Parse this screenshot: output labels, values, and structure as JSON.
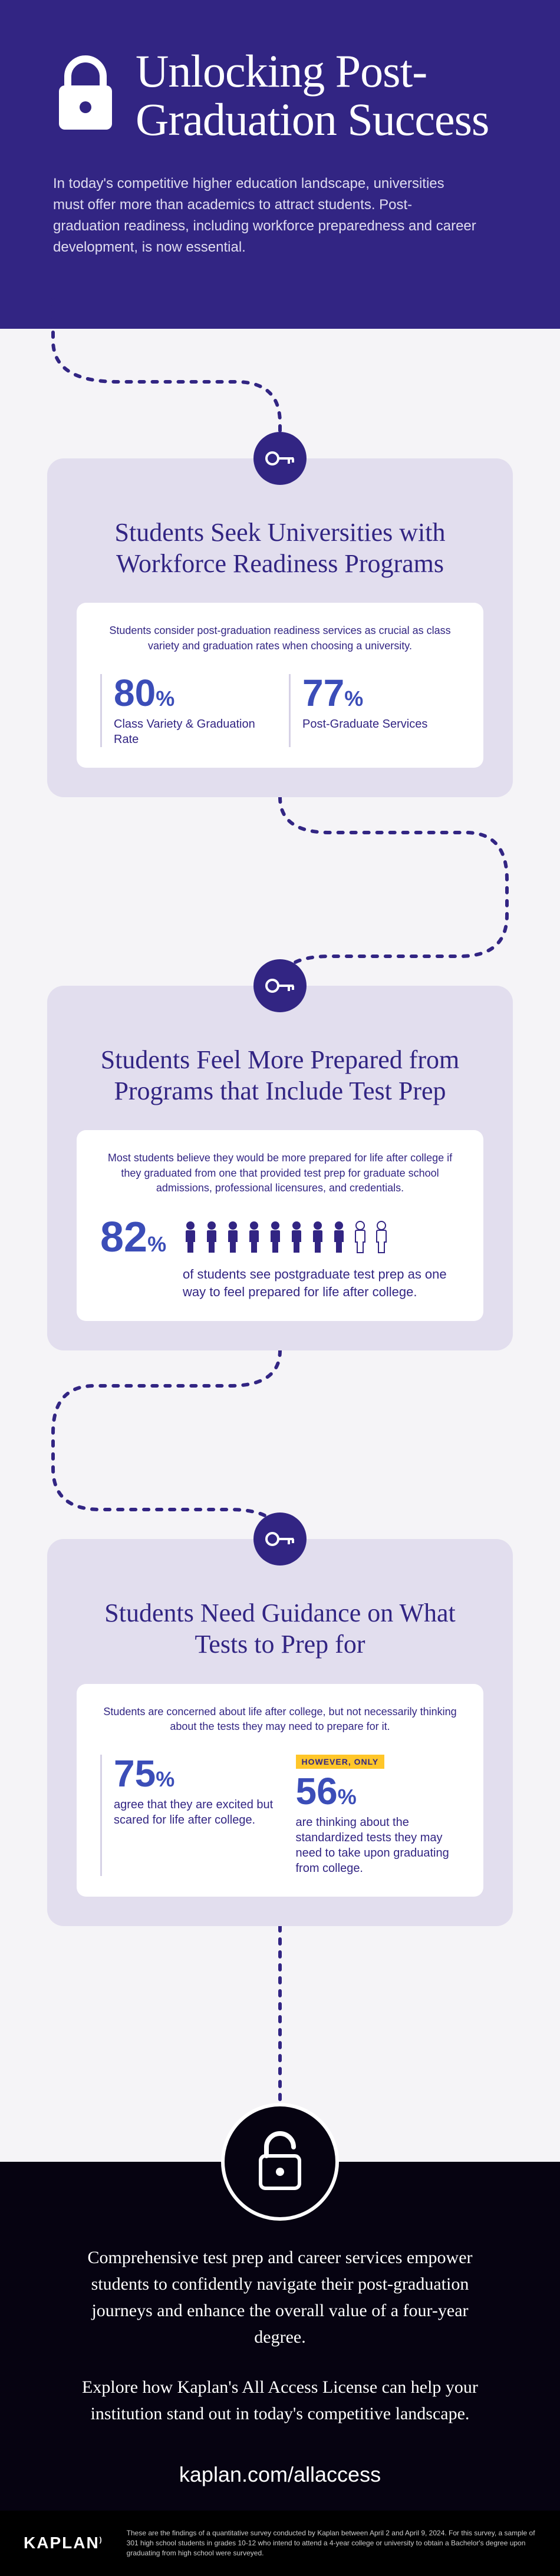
{
  "header": {
    "title": "Unlocking Post-Graduation Success",
    "subtitle": "In today's competitive higher education landscape, universities must offer more than academics to attract students. Post-graduation readiness, including workforce preparedness and career development, is now essential."
  },
  "colors": {
    "primary": "#322583",
    "card_bg": "#e2deee",
    "stat_blue": "#3b4db8",
    "highlight": "#ffc629",
    "footer_bg": "#060311"
  },
  "card1": {
    "heading": "Students Seek Universities with Workforce Readiness Programs",
    "desc": "Students consider post-graduation readiness services as crucial as class variety and graduation rates when choosing a university.",
    "stats": [
      {
        "value": "80",
        "unit": "%",
        "label": "Class Variety & Graduation Rate"
      },
      {
        "value": "77",
        "unit": "%",
        "label": "Post-Graduate Services"
      }
    ]
  },
  "card2": {
    "heading": "Students Feel More Prepared from Programs that Include Test Prep",
    "desc": "Most students believe they would be more prepared for life after college if they graduated from one that provided test prep for graduate school admissions, professional licensures, and credentials.",
    "stat_value": "82",
    "stat_unit": "%",
    "caption": "of students see postgraduate test prep as one way to feel prepared for life after college.",
    "people_total": 10,
    "people_filled": 8
  },
  "card3": {
    "heading": "Students Need Guidance on What Tests to Prep for",
    "desc": "Students are concerned about life after college, but not necessarily thinking about the tests they may need to prepare for it.",
    "stats": [
      {
        "value": "75",
        "unit": "%",
        "label": "agree that they are excited but scared for life after college."
      },
      {
        "badge": "HOWEVER, ONLY",
        "value": "56",
        "unit": "%",
        "label": "are thinking about the standardized tests they may need to take upon graduating from college."
      }
    ]
  },
  "footer": {
    "p1": "Comprehensive test prep and career services empower students to confidently navigate their post-graduation journeys and enhance the overall value of a four-year degree.",
    "p2": "Explore how Kaplan's All Access License can help your institution stand out in today's competitive landscape.",
    "url": "kaplan.com/allaccess"
  },
  "logo": "KAPLAN",
  "disclaimer": "These are the findings of a quantitative survey conducted by Kaplan between April 2 and April 9, 2024. For this survey, a sample of 301 high school students in grades 10-12 who intend to attend a 4-year college or university to obtain a Bachelor's degree upon graduating from high school were surveyed."
}
